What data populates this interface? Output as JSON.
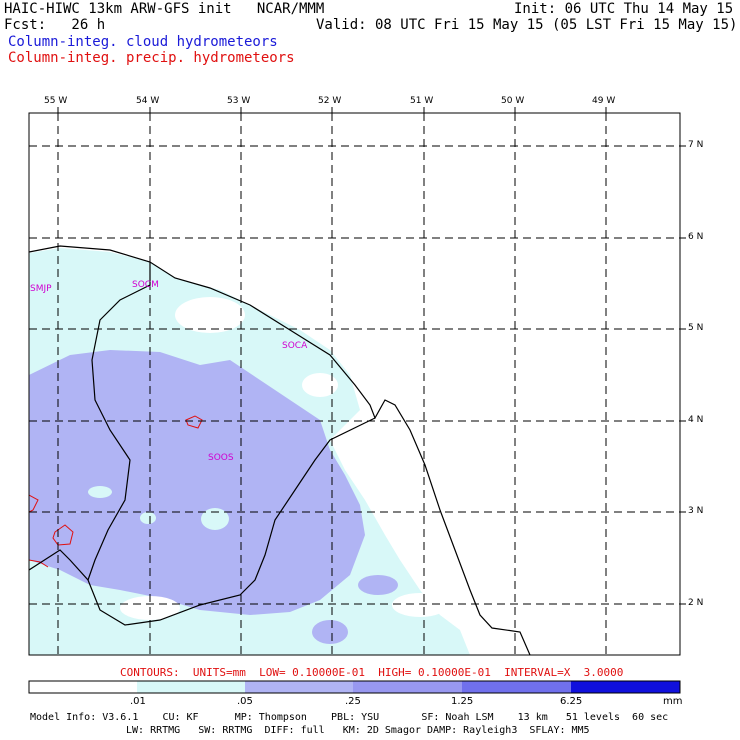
{
  "header": {
    "model_line": "HAIC-HIWC 13km ARW-GFS init   NCAR/MMM",
    "init_line": "Init: 06 UTC Thu 14 May 15",
    "fcst_line": "Fcst:   26 h",
    "valid_line": "Valid: 08 UTC Fri 15 May 15 (05 LST Fri 15 May 15)",
    "field1": "Column-integ. cloud hydrometeors",
    "field2": "Column-integ. precip. hydrometeors"
  },
  "map": {
    "lon_labels": [
      "55 W",
      "54 W",
      "53 W",
      "52 W",
      "51 W",
      "50 W",
      "49 W"
    ],
    "lat_labels": [
      "7 N",
      "6 N",
      "5 N",
      "4 N",
      "3 N",
      "2 N"
    ],
    "stations": [
      "SMJP",
      "SOCM",
      "SOCA",
      "SOOS"
    ]
  },
  "contours_line": "CONTOURS:  UNITS=mm  LOW= 0.10000E-01  HIGH= 0.10000E-01  INTERVAL=X  3.0000",
  "colorbar": {
    "ticks": [
      ".01",
      ".05",
      ".25",
      "1.25",
      "6.25"
    ],
    "units": "mm",
    "colors": [
      "#ffffff",
      "#d8f8f8",
      "#b0b4f4",
      "#9898f0",
      "#7070ec",
      "#3838e4",
      "#1010dc"
    ]
  },
  "footer": {
    "line1": "Model Info: V3.6.1    CU: KF      MP: Thompson    PBL: YSU       SF: Noah LSM    13 km   51 levels  60 sec",
    "line2": "LW: RRTMG   SW: RRTMG  DIFF: full   KM: 2D Smagor DAMP: Rayleigh3  SFLAY: MM5"
  }
}
